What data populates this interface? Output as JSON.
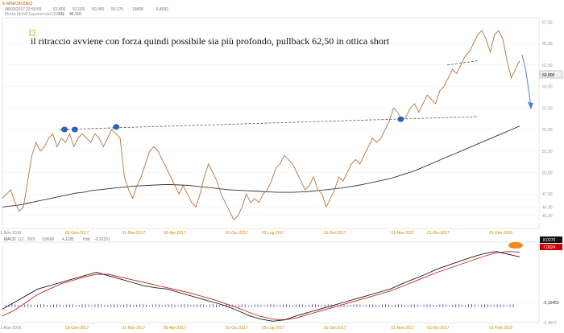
{
  "header": {
    "symbol": "E-MINICRUDEO",
    "date": "08/03/2017",
    "time": "23:59:59",
    "open": "52,800",
    "high": "52,925",
    "low": "50,050",
    "close": "50,275",
    "volume": "19808",
    "var_pct": "-5,4092",
    "ema_label": "Media Mobili Esponenziali (EMA)",
    "ema_period": "200",
    "ema_value": "49,116"
  },
  "annotation": "il ritraccio avviene con forza quindi possibile sia più profondo, pullback 62,50 in ottica short",
  "macd_header": {
    "label": "MACD",
    "params": "(12 , 200)",
    "macd_value": "3,8666",
    "signal_value": "4,1185",
    "hist_label": "Hist",
    "hist_value": "-0,23191"
  },
  "colors": {
    "price": "#b5733a",
    "ema": "#333333",
    "trendline": "#555555",
    "marker": "#2f5fbf",
    "arrow": "#4a86c8",
    "macd": "#1a1a1a",
    "signal": "#cc2222",
    "hist": "#3a3aa0",
    "axis_text": "#cc8800",
    "current_price_box": "#f0f0f0",
    "macd_box": "#111111",
    "signal_box": "#cc0000",
    "highlight": "#f08a1c"
  },
  "chart_data": [
    {
      "type": "line",
      "title": "E-MINICRUDEO",
      "x_ticks": [
        "01-Nov-2016",
        "03-Gen-2017",
        "01-Mar-2017",
        "03-Apr-2017",
        "01-Giu-2017",
        "03-Lug-2017",
        "01-Set-2017",
        "01-Nov-2017",
        "01-Dic-2017",
        "01-Feb-2018"
      ],
      "y_ticks": [
        "45,00",
        "46,00",
        "47,50",
        "50,00",
        "52,50",
        "55,00",
        "57,50",
        "60,00",
        "62,50",
        "65,00",
        "67,50"
      ],
      "ylim": [
        43.5,
        68
      ],
      "current_price": "60,800",
      "series": [
        {
          "name": "",
          "values": [
            47.0,
            47.5,
            48.0,
            46.5,
            45.5,
            46.0,
            49.0,
            52.0,
            53.5,
            52.5,
            53.0,
            54.0,
            54.5,
            53.0,
            54.0,
            53.5,
            54.5,
            53.0,
            54.0,
            54.5,
            54.0,
            53.5,
            54.5,
            54.0,
            53.0,
            54.0,
            55.0,
            54.5,
            54.0,
            49.5,
            48.0,
            47.0,
            48.5,
            49.5,
            51.0,
            52.5,
            53.0,
            52.5,
            51.5,
            50.5,
            49.5,
            48.5,
            47.5,
            48.5,
            47.5,
            46.5,
            46.0,
            47.5,
            49.5,
            51.0,
            50.0,
            49.0,
            47.5,
            46.5,
            45.5,
            44.5,
            45.0,
            46.0,
            47.5,
            46.5,
            47.0,
            46.5,
            47.5,
            48.0,
            49.0,
            50.5,
            51.0,
            52.0,
            51.5,
            51.0,
            50.0,
            49.0,
            48.0,
            48.5,
            49.5,
            48.0,
            47.5,
            46.0,
            47.0,
            48.0,
            49.5,
            49.0,
            50.0,
            51.0,
            51.5,
            51.0,
            52.0,
            53.0,
            54.0,
            53.5,
            54.0,
            55.0,
            56.0,
            57.5,
            57.0,
            56.0,
            56.5,
            57.5,
            58.0,
            57.0,
            58.0,
            59.0,
            58.5,
            58.0,
            59.5,
            60.0,
            61.0,
            62.0,
            61.5,
            62.5,
            63.5,
            64.0,
            65.0,
            66.0,
            66.5,
            65.5,
            64.0,
            66.0,
            66.5,
            65.5,
            63.0,
            61.0,
            62.0,
            63.0
          ]
        },
        {
          "name": "",
          "values": [
            46.0,
            46.1,
            46.2,
            46.4,
            46.6,
            46.8,
            47.0,
            47.2,
            47.4,
            47.6,
            47.7,
            47.9,
            48.0,
            48.1,
            48.2,
            48.3,
            48.4,
            48.45,
            48.5,
            48.55,
            48.6,
            48.6,
            48.55,
            48.5,
            48.4,
            48.3,
            48.2,
            48.1,
            48.0,
            47.95,
            47.9,
            47.85,
            47.8,
            47.75,
            47.7,
            47.7,
            47.7,
            47.75,
            47.8,
            47.9,
            48.0,
            48.1,
            48.2,
            48.35,
            48.5,
            48.7,
            48.9,
            49.1,
            49.3,
            49.6,
            49.9,
            50.2,
            50.6,
            51.0,
            51.4,
            51.8,
            52.2,
            52.6,
            53.0,
            53.4,
            53.8,
            54.2,
            54.6,
            55.0,
            55.4
          ]
        }
      ],
      "trendlines": [
        {
          "from": [
            0.11,
            55.0
          ],
          "to": [
            0.92,
            56.5
          ]
        },
        {
          "from": [
            0.86,
            62.5
          ],
          "to": [
            0.92,
            63.0
          ]
        }
      ],
      "markers": [
        [
          0.12,
          55.0
        ],
        [
          0.14,
          55.0
        ],
        [
          0.22,
          55.3
        ],
        [
          0.77,
          56.2
        ]
      ]
    },
    {
      "type": "line",
      "title": "MACD",
      "x_ticks": [
        "01-Nov-2016",
        "03-Gen-2017",
        "01-Mar-2017",
        "03-Apr-2017",
        "01-Giu-2017",
        "03-Lug-2017",
        "01-Set-2017",
        "01-Nov-2017",
        "01-Dic-2017",
        "01-Feb-2018"
      ],
      "y_ticks": [
        "8,0270",
        "7,0824",
        "-0,16450",
        "-2,4602"
      ],
      "ylim": [
        -3,
        9
      ],
      "series": [
        {
          "name": "",
          "values": [
            -1.0,
            0.0,
            1.0,
            2.0,
            2.5,
            3.0,
            3.5,
            4.0,
            4.5,
            4.0,
            3.5,
            3.0,
            2.5,
            2.2,
            2.0,
            1.5,
            1.0,
            0.5,
            0.0,
            -0.5,
            -1.2,
            -2.0,
            -2.5,
            -2.8,
            -2.6,
            -2.0,
            -1.5,
            -1.0,
            -0.5,
            0.0,
            0.5,
            1.0,
            1.5,
            2.0,
            2.8,
            3.5,
            4.2,
            5.0,
            5.6,
            6.2,
            6.8,
            7.3,
            7.6,
            7.2,
            6.8
          ]
        },
        {
          "name": "",
          "values": [
            -2.0,
            -1.2,
            0.0,
            1.2,
            2.0,
            2.8,
            3.3,
            3.8,
            4.2,
            4.2,
            3.8,
            3.4,
            3.0,
            2.6,
            2.2,
            1.8,
            1.4,
            0.9,
            0.4,
            -0.2,
            -0.8,
            -1.5,
            -2.1,
            -2.5,
            -2.6,
            -2.3,
            -1.8,
            -1.3,
            -0.8,
            -0.3,
            0.2,
            0.7,
            1.2,
            1.7,
            2.4,
            3.1,
            3.8,
            4.5,
            5.1,
            5.7,
            6.3,
            6.9,
            7.4,
            7.6,
            7.5
          ]
        }
      ]
    }
  ]
}
